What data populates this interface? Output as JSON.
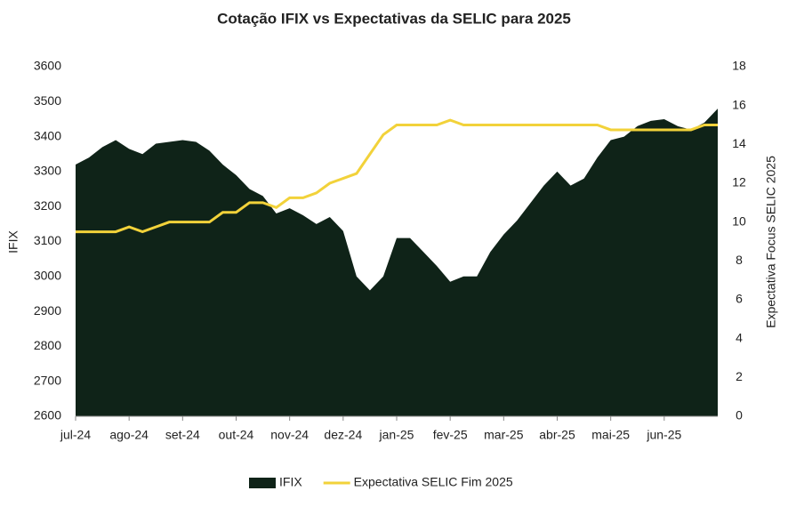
{
  "chart_data": {
    "type": "area_line",
    "title": "Cotação IFIX  vs Expectativas da SELIC para 2025",
    "y_label": "IFIX",
    "y2_label": "Expectativa Focus SELIC 2025",
    "categories": [
      "jul-24",
      null,
      null,
      null,
      "ago-24",
      null,
      null,
      null,
      "set-24",
      null,
      null,
      null,
      "out-24",
      null,
      null,
      null,
      "nov-24",
      null,
      null,
      null,
      "dez-24",
      null,
      null,
      null,
      "jan-25",
      null,
      null,
      null,
      "fev-25",
      null,
      null,
      null,
      "mar-25",
      null,
      null,
      null,
      "abr-25",
      null,
      null,
      null,
      "mai-25",
      null,
      null,
      null,
      "jun-25",
      null,
      null,
      null,
      null
    ],
    "series": [
      {
        "name": "IFIX",
        "color": "#0f2318",
        "axis": "y",
        "values": [
          3320,
          3340,
          3370,
          3390,
          3365,
          3350,
          3380,
          3385,
          3390,
          3385,
          3360,
          3320,
          3290,
          3250,
          3230,
          3180,
          3195,
          3175,
          3150,
          3170,
          3130,
          3000,
          2960,
          3000,
          3110,
          3110,
          3070,
          3030,
          2985,
          3000,
          3000,
          3070,
          3120,
          3160,
          3210,
          3260,
          3300,
          3260,
          3280,
          3340,
          3390,
          3400,
          3430,
          3445,
          3450,
          3430,
          3420,
          3440,
          3480
        ]
      },
      {
        "name": "Expectativa SELIC Fim 2025",
        "color": "#f2d23a",
        "axis": "y2",
        "values": [
          9.5,
          9.5,
          9.5,
          9.5,
          9.75,
          9.5,
          9.75,
          10,
          10,
          10,
          10,
          10.5,
          10.5,
          11,
          11,
          10.75,
          11.25,
          11.25,
          11.5,
          12,
          12.25,
          12.5,
          13.5,
          14.5,
          15,
          15,
          15,
          15,
          15.25,
          15,
          15,
          15,
          15,
          15,
          15,
          15,
          15,
          15,
          15,
          15,
          14.75,
          14.75,
          14.75,
          14.75,
          14.75,
          14.75,
          14.75,
          15,
          15
        ]
      }
    ],
    "ylim": [
      2600,
      3600
    ],
    "yticks": [
      2600,
      2700,
      2800,
      2900,
      3000,
      3100,
      3200,
      3300,
      3400,
      3500,
      3600
    ],
    "y2lim": [
      0,
      18
    ],
    "y2ticks": [
      0,
      2,
      4,
      6,
      8,
      10,
      12,
      14,
      16,
      18
    ],
    "legend": "bottom"
  }
}
